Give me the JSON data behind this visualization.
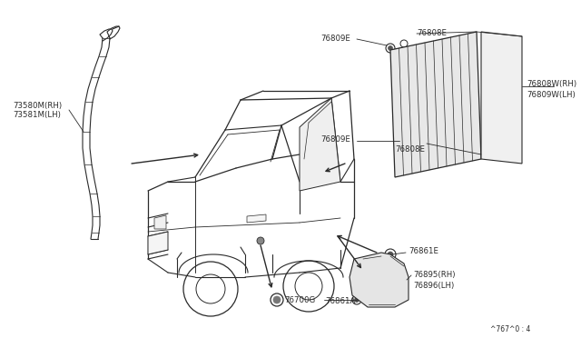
{
  "bg_color": "#ffffff",
  "fig_width": 6.4,
  "fig_height": 3.72,
  "dpi": 100,
  "line_color": "#2a2a2a",
  "label_fs": 6.2,
  "labels": {
    "part_73580": "73580M(RH)",
    "part_73581": "73581M(LH)",
    "lbl_76809E_top": "76809E",
    "lbl_76808E_top": "76808E",
    "lbl_76808W": "76808W(RH)",
    "lbl_76809W": "76809W(LH)",
    "lbl_76809E_bot": "76809E",
    "lbl_76808E_bot": "76808E",
    "lbl_76861E": "76861E",
    "lbl_76895": "76895(RH)",
    "lbl_76896": "76896(LH)",
    "lbl_76700G": "76700G",
    "lbl_76861A": "76861A",
    "watermark": "^767^0 : 4"
  }
}
